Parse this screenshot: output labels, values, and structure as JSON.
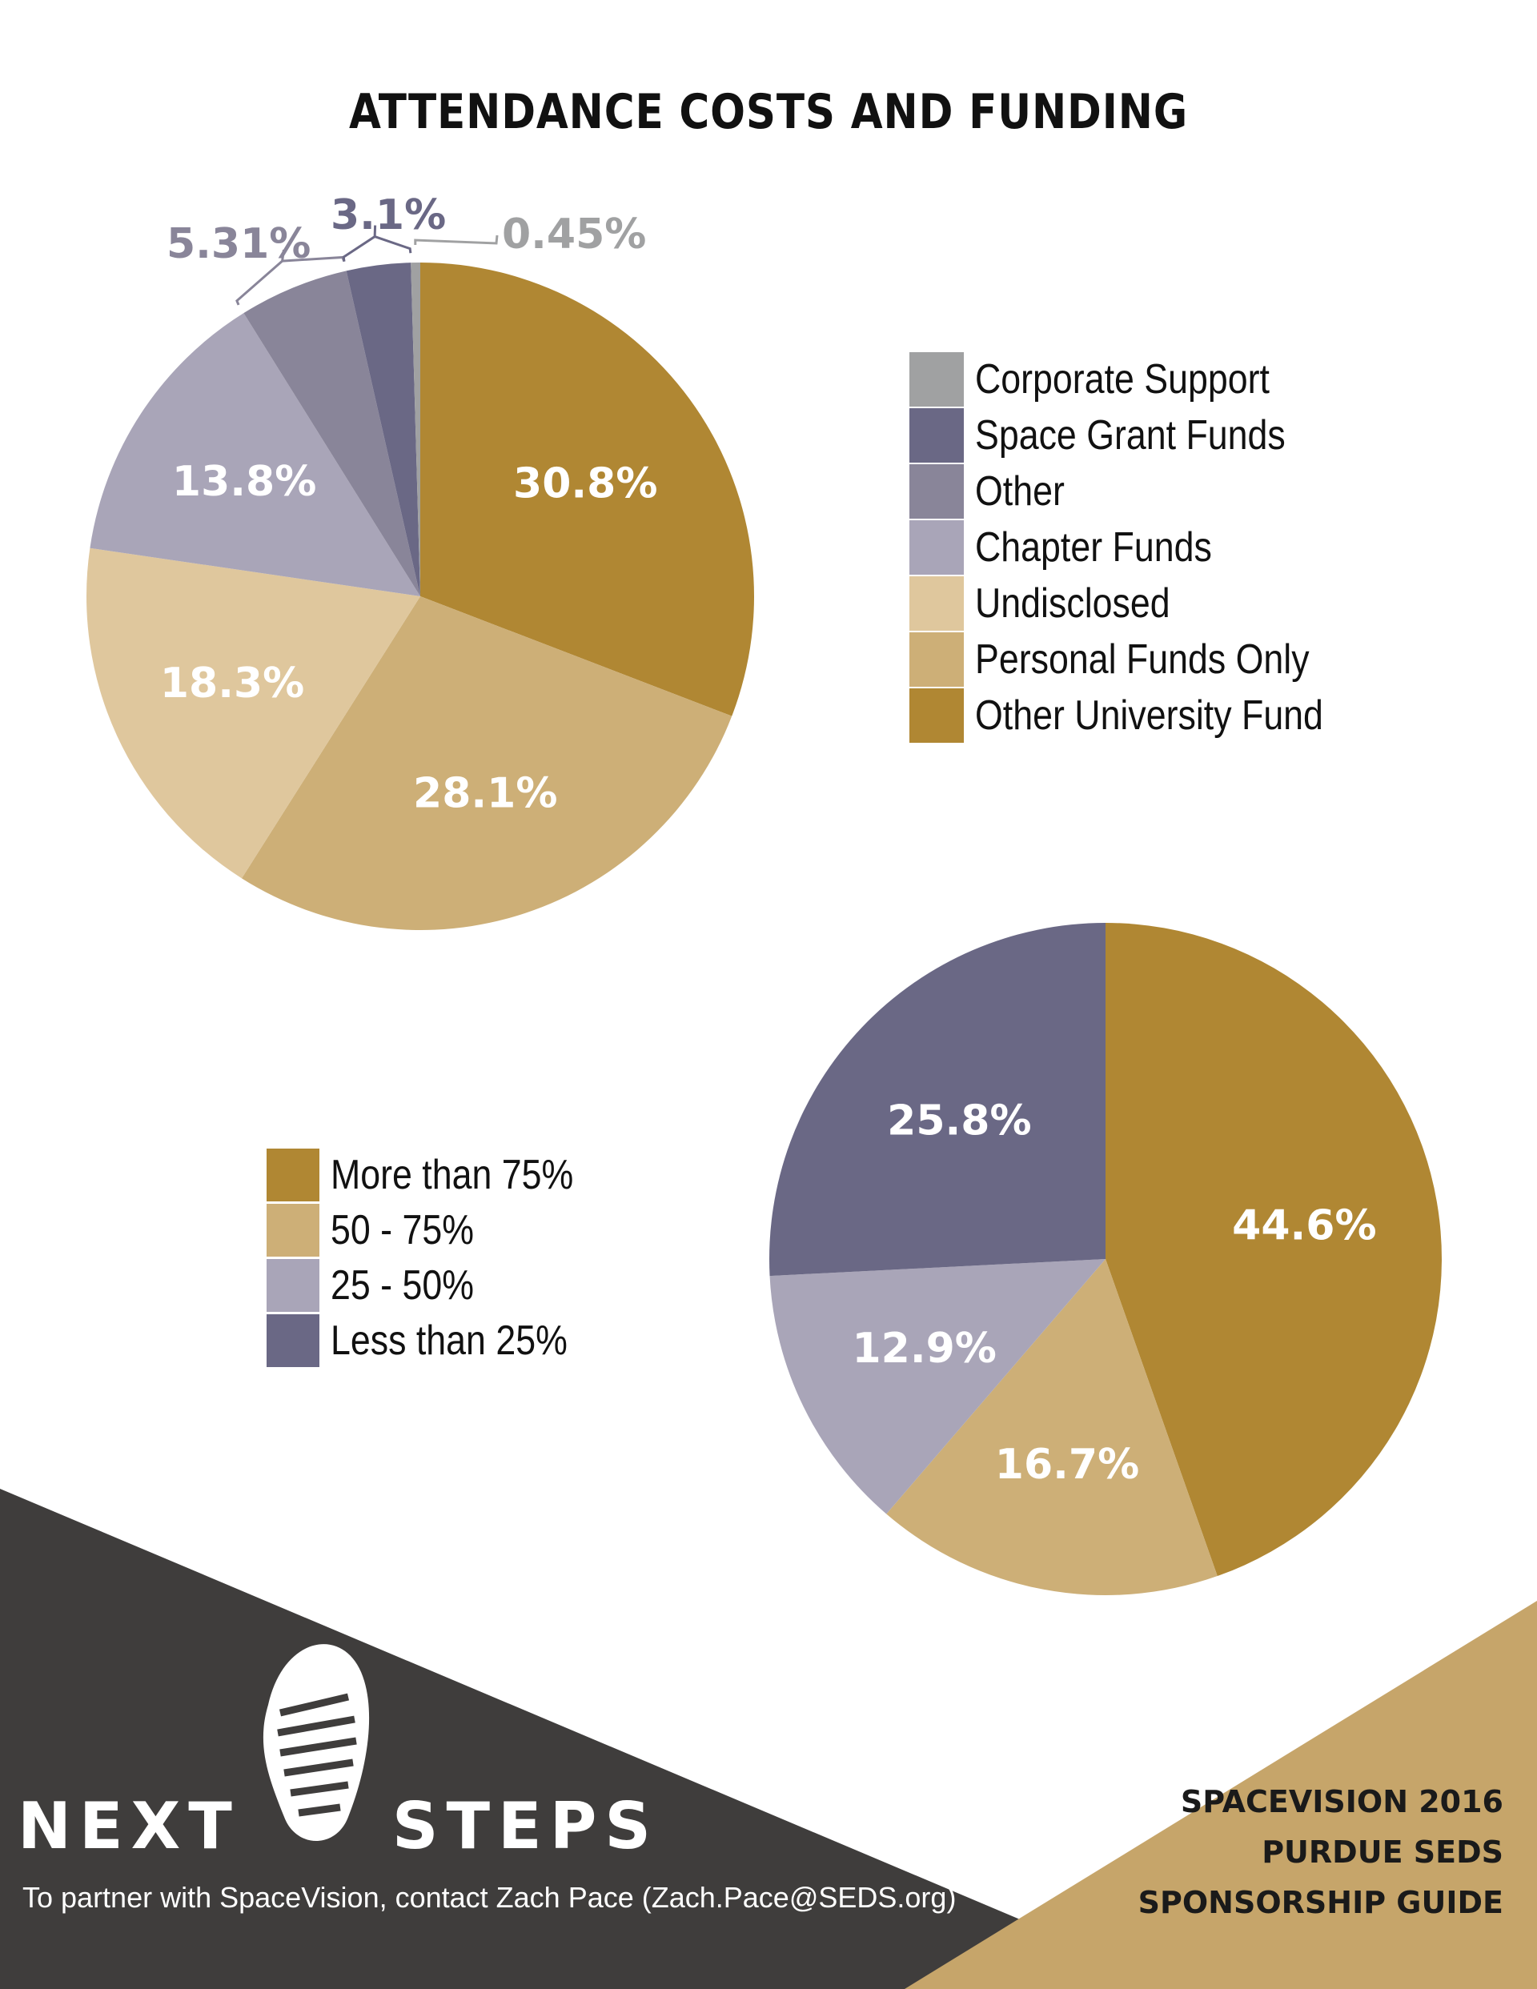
{
  "page": {
    "title": "ATTENDANCE COSTS AND FUNDING"
  },
  "colors": {
    "gold_dark": "#b08733",
    "gold_mid": "#cdaf77",
    "gold_light": "#dfc79d",
    "lavender": "#a9a5b8",
    "slate": "#898599",
    "navy_slate": "#6a6885",
    "gray": "#a0a1a2",
    "footer_dark": "#3f3d3c",
    "footer_darker": "#2a2624",
    "footer_gold": "#c6a56a"
  },
  "chart_data": [
    {
      "type": "pie",
      "title": "",
      "legend_position": "right",
      "slices": [
        {
          "name": "Other University Fund",
          "value": 30.8,
          "label": "30.8%",
          "color": "#b08733"
        },
        {
          "name": "Personal Funds Only",
          "value": 28.1,
          "label": "28.1%",
          "color": "#cdaf77"
        },
        {
          "name": "Undisclosed",
          "value": 18.3,
          "label": "18.3%",
          "color": "#dfc79d"
        },
        {
          "name": "Chapter Funds",
          "value": 13.8,
          "label": "13.8%",
          "color": "#a9a5b8"
        },
        {
          "name": "Other",
          "value": 5.31,
          "label": "5.31%",
          "color": "#898599"
        },
        {
          "name": "Space Grant Funds",
          "value": 3.1,
          "label": "3.1%",
          "color": "#6a6885"
        },
        {
          "name": "Corporate Support",
          "value": 0.45,
          "label": "0.45%",
          "color": "#a0a1a2"
        }
      ],
      "legend": [
        "Corporate Support",
        "Space Grant Funds",
        "Other",
        "Chapter Funds",
        "Undisclosed",
        "Personal Funds Only",
        "Other University Fund"
      ]
    },
    {
      "type": "pie",
      "title": "",
      "legend_position": "left",
      "slices": [
        {
          "name": "More than 75%",
          "value": 44.6,
          "label": "44.6%",
          "color": "#b08733"
        },
        {
          "name": "50 - 75%",
          "value": 16.7,
          "label": "16.7%",
          "color": "#cdaf77"
        },
        {
          "name": "25 - 50%",
          "value": 12.9,
          "label": "12.9%",
          "color": "#a9a5b8"
        },
        {
          "name": "Less than 25%",
          "value": 25.8,
          "label": "25.8%",
          "color": "#6a6885"
        }
      ],
      "legend": [
        "More than 75%",
        "50 - 75%",
        "25 - 50%",
        "Less than 25%"
      ]
    }
  ],
  "footer": {
    "brand_left": "NEXT",
    "brand_right": "STEPS",
    "logo_icon": "footprint-icon",
    "contact": "To partner with SpaceVision, contact Zach Pace (Zach.Pace@SEDS.org)",
    "guide_lines": [
      "SPACEVISION 2016",
      "PURDUE SEDS",
      "SPONSORSHIP GUIDE"
    ]
  }
}
